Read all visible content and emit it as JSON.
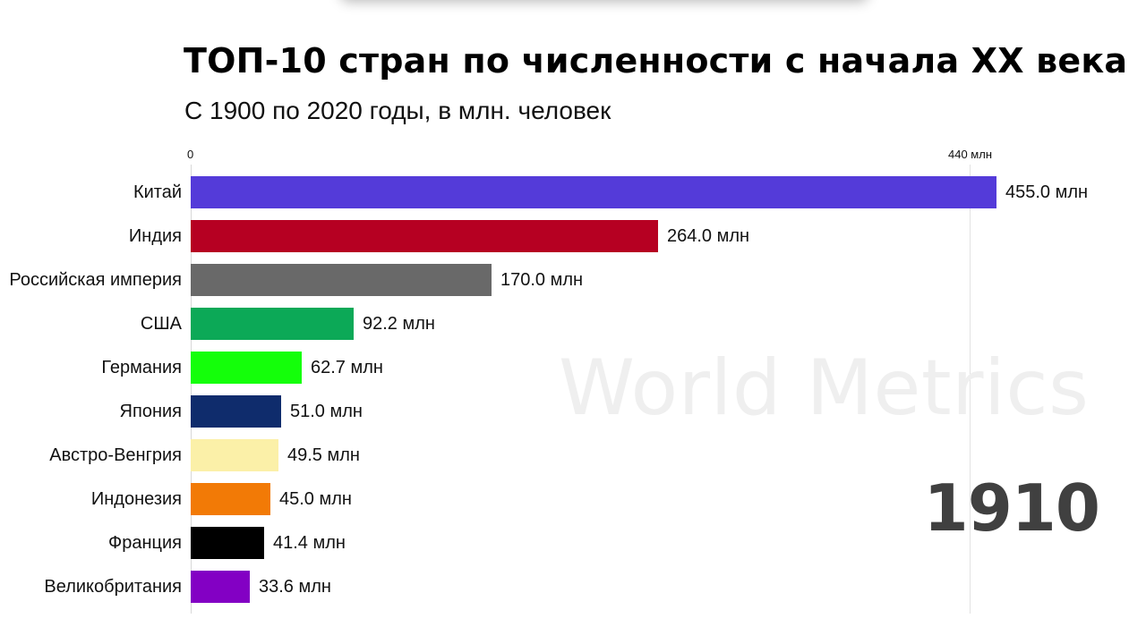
{
  "header": {
    "title": "ТОП-10 стран по численности с начала XX века",
    "subtitle": "С 1900 по 2020 годы, в млн. человек"
  },
  "axis": {
    "ticks": [
      {
        "label": "0",
        "value": 0
      },
      {
        "label": "440 млн",
        "value": 440
      }
    ]
  },
  "watermark": "World Metrics",
  "year": "1910",
  "bars": [
    {
      "label": "Китай",
      "value": 455.0,
      "value_label": "455.0 млн",
      "color": "#543bd9"
    },
    {
      "label": "Индия",
      "value": 264.0,
      "value_label": "264.0 млн",
      "color": "#b60022"
    },
    {
      "label": "Российская империя",
      "value": 170.0,
      "value_label": "170.0 млн",
      "color": "#696969"
    },
    {
      "label": "США",
      "value": 92.2,
      "value_label": "92.2 млн",
      "color": "#0ca957"
    },
    {
      "label": "Германия",
      "value": 62.7,
      "value_label": "62.7 млн",
      "color": "#14ff0a"
    },
    {
      "label": "Япония",
      "value": 51.0,
      "value_label": "51.0 млн",
      "color": "#0f2c6c"
    },
    {
      "label": "Австро-Венгрия",
      "value": 49.5,
      "value_label": "49.5 млн",
      "color": "#fbf0a8"
    },
    {
      "label": "Индонезия",
      "value": 45.0,
      "value_label": "45.0 млн",
      "color": "#f27a06"
    },
    {
      "label": "Франция",
      "value": 41.4,
      "value_label": "41.4 млн",
      "color": "#000000"
    },
    {
      "label": "Великобритания",
      "value": 33.6,
      "value_label": "33.6 млн",
      "color": "#8300c4"
    }
  ],
  "chart_data": {
    "type": "bar",
    "orientation": "horizontal",
    "title": "ТОП-10 стран по численности с начала XX века",
    "subtitle": "С 1900 по 2020 годы, в млн. человек",
    "annotation": "1910",
    "watermark": "World Metrics",
    "categories": [
      "Китай",
      "Индия",
      "Российская империя",
      "США",
      "Германия",
      "Япония",
      "Австро-Венгрия",
      "Индонезия",
      "Франция",
      "Великобритания"
    ],
    "values": [
      455.0,
      264.0,
      170.0,
      92.2,
      62.7,
      51.0,
      49.5,
      45.0,
      41.4,
      33.6
    ],
    "xlabel": "",
    "ylabel": "",
    "xticks": [
      "0",
      "440 млн"
    ],
    "xlim": [
      0,
      455
    ],
    "grid": true,
    "legend": "none"
  }
}
